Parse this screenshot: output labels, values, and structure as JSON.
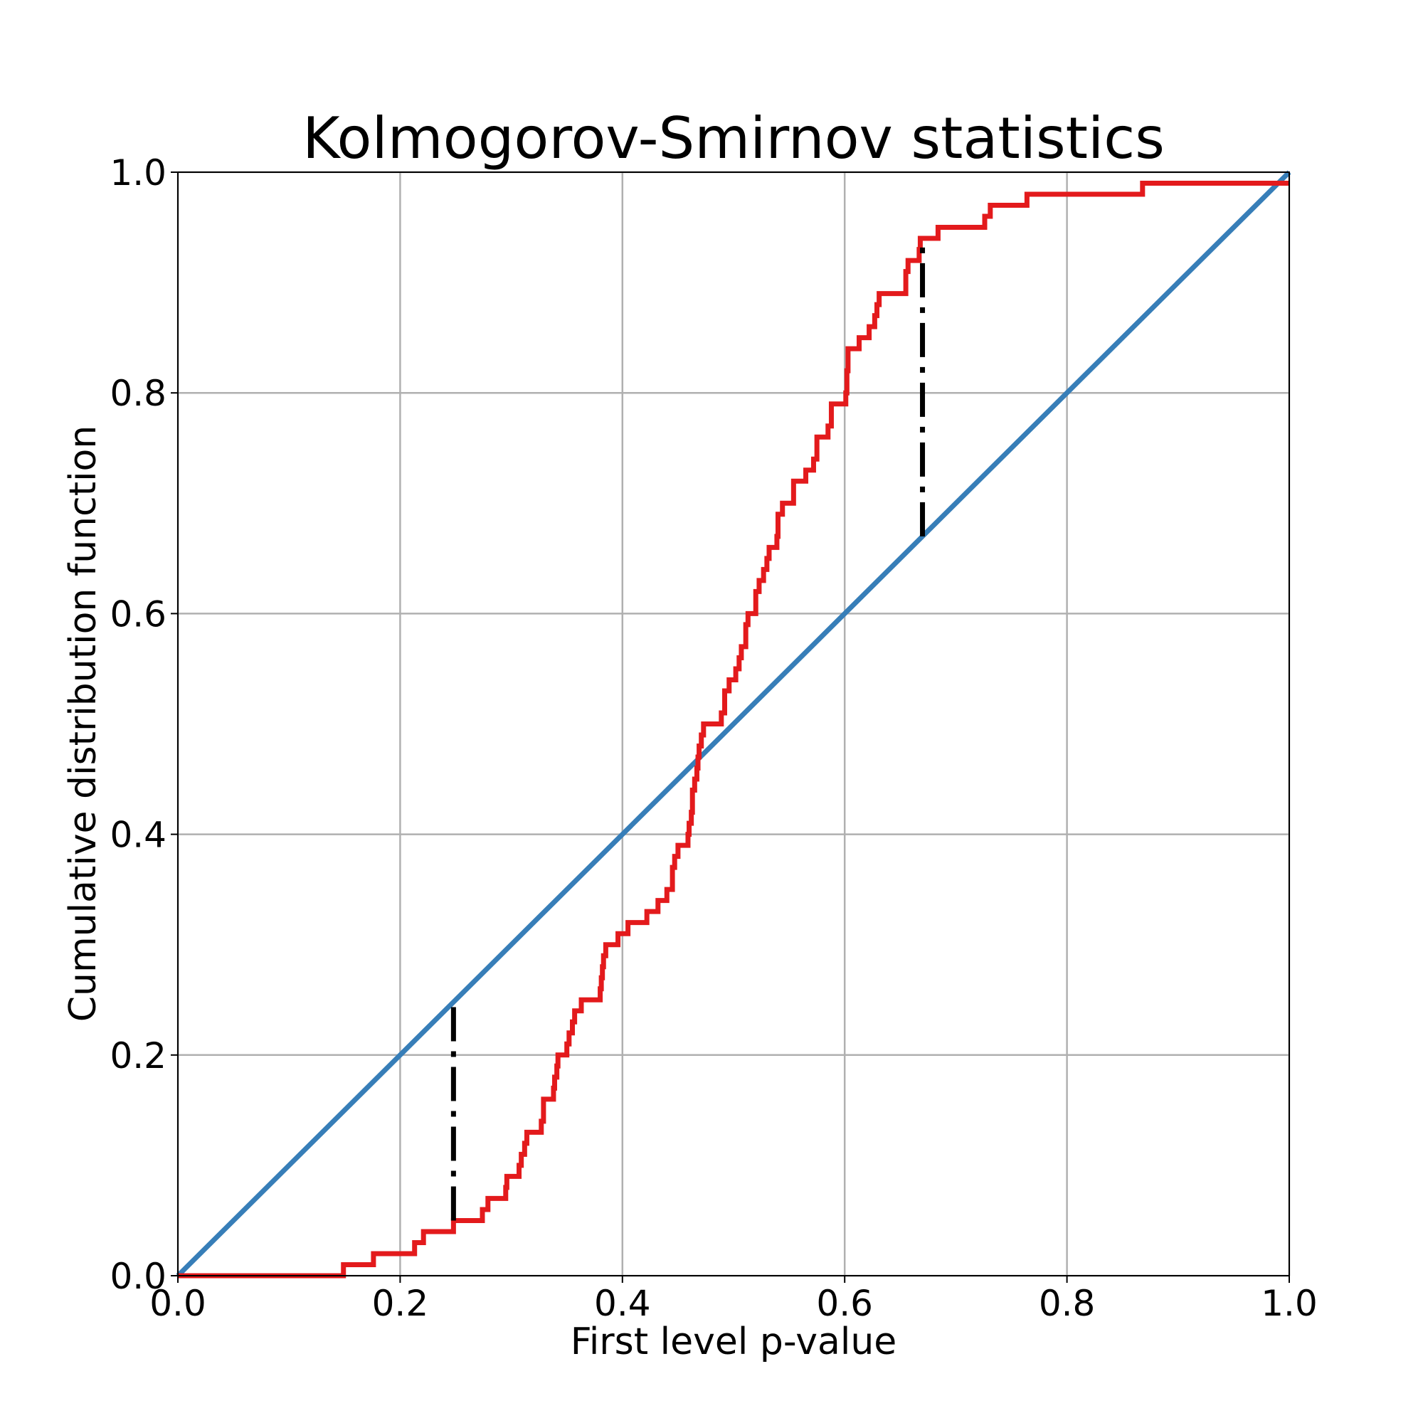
{
  "chart_data": {
    "type": "line",
    "title": "Kolmogorov-Smirnov statistics",
    "xlabel": "First level p-value",
    "ylabel": "Cumulative distribution function",
    "xlim": [
      0.0,
      1.0
    ],
    "ylim": [
      0.0,
      1.0
    ],
    "x_ticks": [
      "0.0",
      "0.2",
      "0.4",
      "0.6",
      "0.8",
      "1.0"
    ],
    "y_ticks": [
      "0.0",
      "0.2",
      "0.4",
      "0.6",
      "0.8",
      "1.0"
    ],
    "grid": true,
    "colors": {
      "empirical_cdf": "#e31a1c",
      "uniform_cdf": "#377eb8",
      "ks_distance": "#000000",
      "grid": "#b0b0b0"
    },
    "series": [
      {
        "style": "step",
        "color": "#e31a1c",
        "points": [
          [
            0.0,
            0.0
          ],
          [
            0.149,
            0.01
          ],
          [
            0.176,
            0.02
          ],
          [
            0.213,
            0.03
          ],
          [
            0.221,
            0.04
          ],
          [
            0.248,
            0.05
          ],
          [
            0.274,
            0.06
          ],
          [
            0.279,
            0.07
          ],
          [
            0.295,
            0.08
          ],
          [
            0.296,
            0.09
          ],
          [
            0.307,
            0.1
          ],
          [
            0.309,
            0.11
          ],
          [
            0.312,
            0.12
          ],
          [
            0.314,
            0.13
          ],
          [
            0.327,
            0.14
          ],
          [
            0.329,
            0.16
          ],
          [
            0.338,
            0.17
          ],
          [
            0.339,
            0.18
          ],
          [
            0.341,
            0.19
          ],
          [
            0.342,
            0.2
          ],
          [
            0.35,
            0.21
          ],
          [
            0.352,
            0.22
          ],
          [
            0.355,
            0.23
          ],
          [
            0.357,
            0.24
          ],
          [
            0.363,
            0.25
          ],
          [
            0.38,
            0.26
          ],
          [
            0.381,
            0.27
          ],
          [
            0.382,
            0.28
          ],
          [
            0.383,
            0.29
          ],
          [
            0.385,
            0.3
          ],
          [
            0.396,
            0.31
          ],
          [
            0.405,
            0.32
          ],
          [
            0.422,
            0.33
          ],
          [
            0.432,
            0.34
          ],
          [
            0.44,
            0.35
          ],
          [
            0.445,
            0.37
          ],
          [
            0.447,
            0.38
          ],
          [
            0.45,
            0.39
          ],
          [
            0.459,
            0.4
          ],
          [
            0.46,
            0.41
          ],
          [
            0.462,
            0.42
          ],
          [
            0.463,
            0.44
          ],
          [
            0.465,
            0.45
          ],
          [
            0.467,
            0.46
          ],
          [
            0.468,
            0.47
          ],
          [
            0.469,
            0.48
          ],
          [
            0.471,
            0.49
          ],
          [
            0.473,
            0.5
          ],
          [
            0.489,
            0.51
          ],
          [
            0.492,
            0.53
          ],
          [
            0.496,
            0.54
          ],
          [
            0.502,
            0.55
          ],
          [
            0.505,
            0.56
          ],
          [
            0.507,
            0.57
          ],
          [
            0.511,
            0.59
          ],
          [
            0.513,
            0.6
          ],
          [
            0.52,
            0.62
          ],
          [
            0.523,
            0.63
          ],
          [
            0.527,
            0.64
          ],
          [
            0.53,
            0.65
          ],
          [
            0.532,
            0.66
          ],
          [
            0.539,
            0.67
          ],
          [
            0.54,
            0.69
          ],
          [
            0.544,
            0.7
          ],
          [
            0.554,
            0.72
          ],
          [
            0.565,
            0.73
          ],
          [
            0.572,
            0.74
          ],
          [
            0.575,
            0.76
          ],
          [
            0.585,
            0.77
          ],
          [
            0.588,
            0.79
          ],
          [
            0.601,
            0.8
          ],
          [
            0.602,
            0.82
          ],
          [
            0.603,
            0.84
          ],
          [
            0.613,
            0.85
          ],
          [
            0.622,
            0.86
          ],
          [
            0.627,
            0.87
          ],
          [
            0.629,
            0.88
          ],
          [
            0.631,
            0.89
          ],
          [
            0.655,
            0.91
          ],
          [
            0.657,
            0.92
          ],
          [
            0.667,
            0.93
          ],
          [
            0.668,
            0.94
          ],
          [
            0.684,
            0.95
          ],
          [
            0.726,
            0.96
          ],
          [
            0.731,
            0.97
          ],
          [
            0.764,
            0.98
          ],
          [
            0.868,
            0.99
          ],
          [
            1.0,
            0.99
          ]
        ]
      },
      {
        "style": "line",
        "color": "#377eb8",
        "points": [
          [
            0.0,
            0.0
          ],
          [
            1.0,
            1.0
          ]
        ]
      }
    ],
    "annotations": [
      {
        "style": "dash-dot",
        "color": "#000000",
        "x": 0.248,
        "y_from": 0.05,
        "y_to": 0.25
      },
      {
        "style": "dash-dot",
        "color": "#000000",
        "x": 0.67,
        "y_from": 0.67,
        "y_to": 0.935
      }
    ]
  }
}
